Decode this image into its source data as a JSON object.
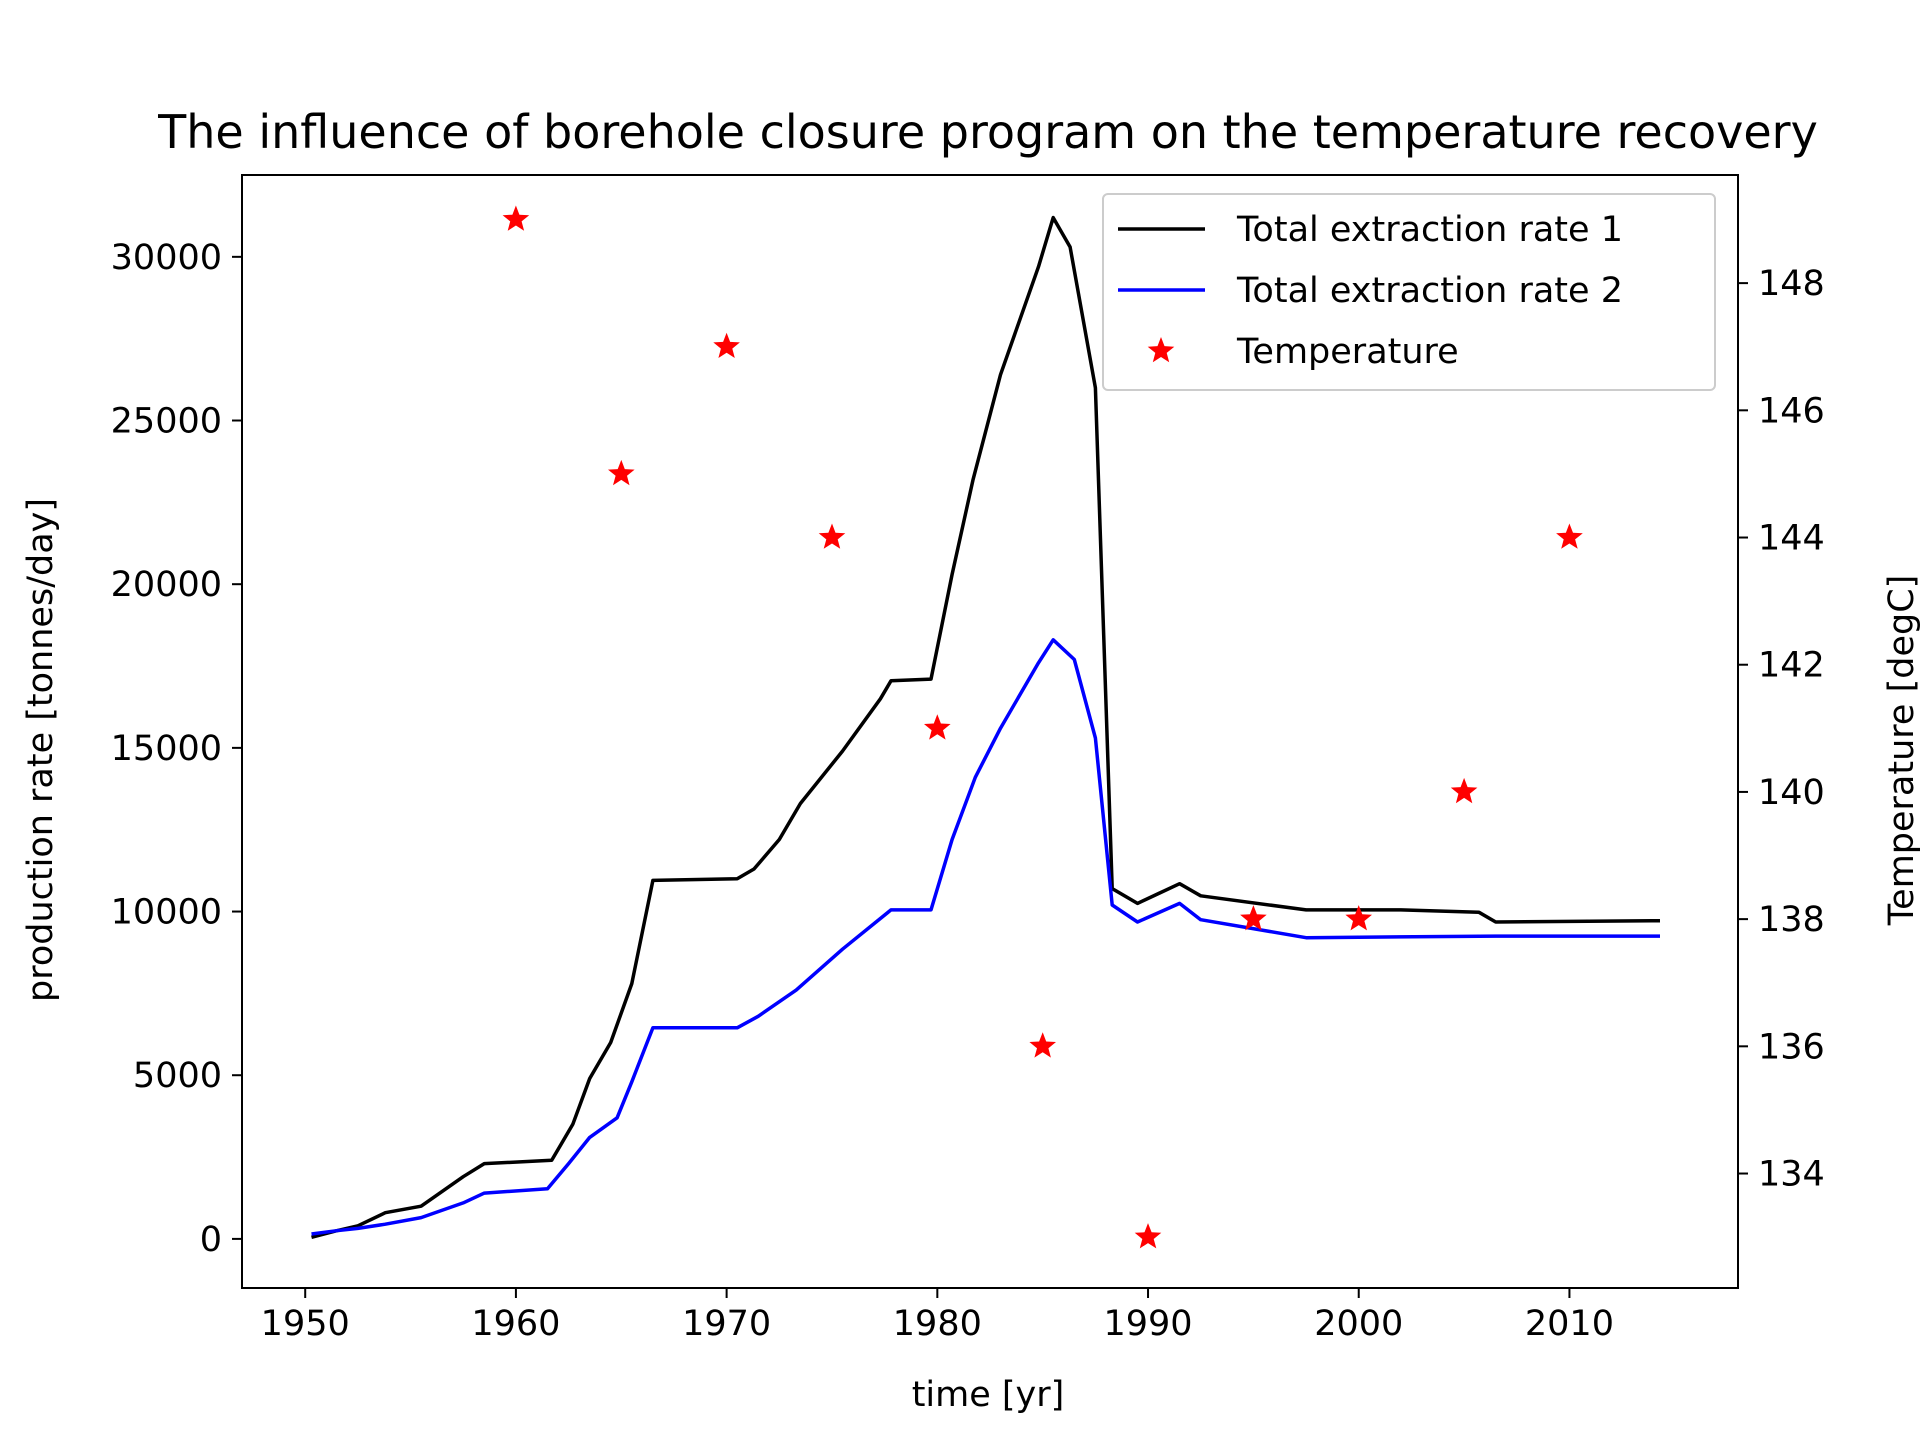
{
  "chart_data": {
    "type": "line",
    "title": "The influence of borehole closure program on the temperature recovery",
    "xlabel": "time [yr]",
    "ylabel": "production rate [tonnes/day]",
    "y2label": "Temperature [degC]",
    "xlim": [
      1947,
      2018
    ],
    "ylim": [
      -1500,
      32500
    ],
    "y2lim": [
      132.2,
      149.7
    ],
    "xticks": [
      1950,
      1960,
      1970,
      1980,
      1990,
      2000,
      2010
    ],
    "yticks": [
      0,
      5000,
      10000,
      15000,
      20000,
      25000,
      30000
    ],
    "y2ticks": [
      134,
      136,
      138,
      140,
      142,
      144,
      146,
      148
    ],
    "grid": false,
    "legend_position": "top-right",
    "series": [
      {
        "name": "Total extraction rate 1",
        "axis": "left",
        "style": "line",
        "color": "#000000",
        "x": [
          1950.3,
          1951.5,
          1952.5,
          1953.8,
          1955.5,
          1957.5,
          1958.5,
          1961.7,
          1962.7,
          1963.5,
          1964.5,
          1965.5,
          1966.5,
          1970.5,
          1971.3,
          1972.5,
          1973.5,
          1975.5,
          1977.3,
          1977.8,
          1979.7,
          1980.7,
          1981.7,
          1983.0,
          1984.8,
          1985.5,
          1986.3,
          1987.5,
          1988.3,
          1989.5,
          1990.5,
          1991.5,
          1992.5,
          1997.5,
          2002.0,
          2005.7,
          2006.5,
          2014.3
        ],
        "y": [
          50,
          250,
          400,
          800,
          1000,
          1900,
          2300,
          2400,
          3500,
          4900,
          6000,
          7800,
          10950,
          11000,
          11300,
          12200,
          13300,
          14900,
          16500,
          17050,
          17100,
          20300,
          23200,
          26400,
          29700,
          31200,
          30300,
          26000,
          10700,
          10250,
          10550,
          10850,
          10480,
          10050,
          10050,
          9980,
          9680,
          9720
        ]
      },
      {
        "name": "Total extraction rate 2",
        "axis": "left",
        "style": "line",
        "color": "#0000ff",
        "x": [
          1950.3,
          1951.5,
          1952.5,
          1953.8,
          1955.5,
          1957.5,
          1958.5,
          1961.5,
          1962.5,
          1963.5,
          1964.8,
          1965.5,
          1966.5,
          1970.5,
          1971.5,
          1973.3,
          1975.5,
          1977.8,
          1979.7,
          1980.7,
          1981.8,
          1983.0,
          1984.8,
          1985.5,
          1986.5,
          1987.5,
          1988.3,
          1989.5,
          1991.5,
          1992.5,
          1997.5,
          2006.5,
          2014.3
        ],
        "y": [
          150,
          250,
          320,
          450,
          650,
          1100,
          1400,
          1530,
          2300,
          3100,
          3700,
          4800,
          6450,
          6450,
          6800,
          7600,
          8850,
          10050,
          10050,
          12200,
          14100,
          15600,
          17600,
          18300,
          17700,
          15300,
          10200,
          9680,
          10250,
          9750,
          9200,
          9250,
          9250
        ]
      },
      {
        "name": "Temperature",
        "axis": "right",
        "style": "markers",
        "marker": "star",
        "color": "#ff0000",
        "x": [
          1960,
          1965,
          1970,
          1975,
          1980,
          1985,
          1990,
          1995,
          2000,
          2005,
          2010
        ],
        "y": [
          149,
          145,
          147,
          144,
          141,
          136,
          133,
          138,
          138,
          140,
          144
        ]
      }
    ]
  }
}
